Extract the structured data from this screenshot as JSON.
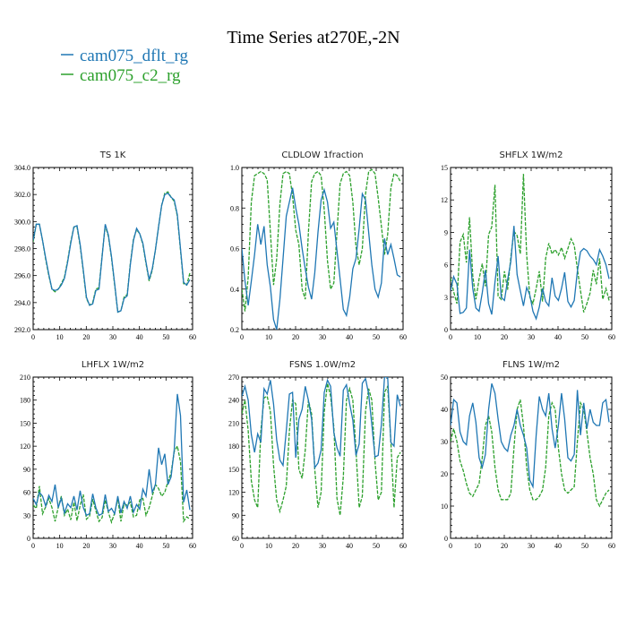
{
  "figure": {
    "title": "Time Series at270E,-2N",
    "legend": [
      {
        "label": "cam075_dflt_rg",
        "color": "#1f77b4",
        "dash": "solid"
      },
      {
        "label": "cam075_c2_rg",
        "color": "#2ca02c",
        "dash": "dashed"
      }
    ]
  },
  "chart_data": [
    {
      "type": "line",
      "title": "TS   1K",
      "xlim": [
        0,
        60
      ],
      "xticks": [
        0,
        10,
        20,
        30,
        40,
        50,
        60
      ],
      "ylim": [
        292,
        304
      ],
      "yticks": [
        292,
        294,
        296,
        298,
        300,
        302,
        304
      ],
      "ytick_format": 1,
      "series": [
        {
          "name": "cam075_dflt_rg",
          "color": "#1f77b4",
          "dash": "solid",
          "values": [
            298.6,
            299.8,
            299.8,
            298.6,
            297.3,
            296.1,
            295.0,
            294.9,
            295.0,
            295.3,
            295.8,
            297.0,
            298.4,
            299.6,
            299.7,
            298.3,
            296.4,
            294.4,
            293.8,
            293.9,
            294.9,
            295.0,
            297.4,
            299.8,
            299.0,
            297.4,
            295.4,
            293.3,
            293.4,
            294.3,
            294.5,
            296.8,
            298.6,
            299.5,
            299.1,
            298.4,
            297.0,
            295.7,
            296.5,
            297.9,
            299.6,
            301.2,
            302.0,
            302.1,
            301.8,
            301.6,
            300.5,
            298.0,
            295.5,
            295.3,
            295.7
          ]
        },
        {
          "name": "cam075_c2_rg",
          "color": "#2ca02c",
          "dash": "dashed",
          "values": [
            298.5,
            299.8,
            299.8,
            298.6,
            297.2,
            296.0,
            295.0,
            294.8,
            295.0,
            295.4,
            295.9,
            297.1,
            298.5,
            299.6,
            299.6,
            298.2,
            296.3,
            294.3,
            293.8,
            294.0,
            295.0,
            295.1,
            297.5,
            299.7,
            298.9,
            297.3,
            295.3,
            293.3,
            293.4,
            294.4,
            294.6,
            296.9,
            298.7,
            299.4,
            299.1,
            298.3,
            296.9,
            295.6,
            296.4,
            297.9,
            299.6,
            301.2,
            302.1,
            302.2,
            301.8,
            301.5,
            300.4,
            297.9,
            295.4,
            295.3,
            296.2
          ]
        }
      ]
    },
    {
      "type": "line",
      "title": "CLDLOW   1fraction",
      "xlim": [
        0,
        60
      ],
      "xticks": [
        0,
        10,
        20,
        30,
        40,
        50,
        60
      ],
      "ylim": [
        0.2,
        1.0
      ],
      "yticks": [
        0.2,
        0.4,
        0.6,
        0.8,
        1.0
      ],
      "ytick_format": 1,
      "series": [
        {
          "name": "cam075_dflt_rg",
          "color": "#1f77b4",
          "dash": "solid",
          "values": [
            0.6,
            0.44,
            0.32,
            0.44,
            0.57,
            0.72,
            0.62,
            0.71,
            0.52,
            0.41,
            0.25,
            0.2,
            0.35,
            0.55,
            0.76,
            0.83,
            0.9,
            0.8,
            0.72,
            0.6,
            0.5,
            0.41,
            0.35,
            0.48,
            0.68,
            0.84,
            0.89,
            0.83,
            0.7,
            0.73,
            0.59,
            0.45,
            0.3,
            0.27,
            0.36,
            0.5,
            0.55,
            0.7,
            0.87,
            0.84,
            0.68,
            0.52,
            0.4,
            0.36,
            0.43,
            0.65,
            0.57,
            0.62,
            0.55,
            0.47,
            0.46
          ]
        },
        {
          "name": "cam075_c2_rg",
          "color": "#2ca02c",
          "dash": "dashed",
          "values": [
            0.4,
            0.29,
            0.46,
            0.83,
            0.96,
            0.97,
            0.98,
            0.97,
            0.94,
            0.68,
            0.42,
            0.55,
            0.82,
            0.97,
            0.98,
            0.97,
            0.86,
            0.69,
            0.62,
            0.4,
            0.35,
            0.68,
            0.93,
            0.97,
            0.98,
            0.96,
            0.79,
            0.54,
            0.4,
            0.43,
            0.68,
            0.92,
            0.97,
            0.98,
            0.96,
            0.83,
            0.61,
            0.52,
            0.6,
            0.87,
            0.98,
            0.99,
            0.97,
            0.85,
            0.71,
            0.57,
            0.67,
            0.9,
            0.97,
            0.96,
            0.93
          ]
        }
      ]
    },
    {
      "type": "line",
      "title": "SHFLX   1W/m2",
      "xlim": [
        0,
        60
      ],
      "xticks": [
        0,
        10,
        20,
        30,
        40,
        50,
        60
      ],
      "ylim": [
        0,
        15
      ],
      "yticks": [
        0,
        3,
        6,
        9,
        12,
        15
      ],
      "ytick_format": 0,
      "series": [
        {
          "name": "cam075_dflt_rg",
          "color": "#1f77b4",
          "dash": "solid",
          "values": [
            3.6,
            4.9,
            4.2,
            1.5,
            1.6,
            2.0,
            7.4,
            3.8,
            2.0,
            1.7,
            3.4,
            5.5,
            2.4,
            1.4,
            4.4,
            6.8,
            3.0,
            2.7,
            4.6,
            6.3,
            9.6,
            5.1,
            3.6,
            2.2,
            3.9,
            3.2,
            1.7,
            1.0,
            2.1,
            3.8,
            2.6,
            2.2,
            4.8,
            3.1,
            2.7,
            3.8,
            5.3,
            2.6,
            2.1,
            2.7,
            5.4,
            7.2,
            7.5,
            7.3,
            6.8,
            6.5,
            6.0,
            7.4,
            6.8,
            6.0,
            4.7
          ]
        },
        {
          "name": "cam075_c2_rg",
          "color": "#2ca02c",
          "dash": "dashed",
          "values": [
            4.8,
            3.5,
            2.4,
            8.1,
            8.8,
            6.2,
            10.4,
            5.0,
            2.8,
            4.7,
            6.1,
            4.0,
            8.8,
            9.5,
            13.4,
            3.1,
            2.8,
            5.4,
            3.7,
            6.7,
            9.1,
            8.7,
            7.0,
            14.4,
            6.9,
            3.0,
            2.4,
            3.8,
            5.4,
            2.6,
            6.6,
            8.0,
            7.0,
            7.4,
            6.9,
            7.6,
            6.6,
            7.5,
            8.4,
            7.8,
            5.6,
            3.6,
            1.6,
            2.4,
            3.4,
            5.5,
            4.2,
            6.6,
            2.8,
            3.8,
            2.7
          ]
        }
      ]
    },
    {
      "type": "line",
      "title": "LHFLX   1W/m2",
      "xlim": [
        0,
        60
      ],
      "xticks": [
        0,
        10,
        20,
        30,
        40,
        50,
        60
      ],
      "ylim": [
        0,
        210
      ],
      "yticks": [
        0,
        30,
        60,
        90,
        120,
        150,
        180,
        210
      ],
      "ytick_format": 0,
      "series": [
        {
          "name": "cam075_dflt_rg",
          "color": "#1f77b4",
          "dash": "solid",
          "values": [
            52,
            44,
            60,
            55,
            42,
            56,
            48,
            70,
            40,
            52,
            33,
            45,
            40,
            55,
            37,
            62,
            40,
            30,
            32,
            58,
            40,
            30,
            32,
            57,
            35,
            39,
            32,
            55,
            33,
            48,
            39,
            55,
            34,
            44,
            38,
            64,
            55,
            90,
            60,
            70,
            118,
            96,
            110,
            70,
            80,
            115,
            188,
            160,
            47,
            63,
            37
          ]
        },
        {
          "name": "cam075_c2_rg",
          "color": "#2ca02c",
          "dash": "dashed",
          "values": [
            43,
            39,
            68,
            32,
            41,
            52,
            40,
            22,
            40,
            55,
            30,
            38,
            24,
            47,
            23,
            43,
            57,
            25,
            29,
            51,
            36,
            22,
            27,
            50,
            34,
            21,
            33,
            52,
            22,
            45,
            43,
            47,
            28,
            30,
            50,
            52,
            30,
            40,
            55,
            70,
            65,
            55,
            60,
            74,
            85,
            113,
            120,
            100,
            22,
            28,
            25
          ]
        }
      ]
    },
    {
      "type": "line",
      "title": "FSNS   1.0W/m2",
      "xlim": [
        0,
        60
      ],
      "xticks": [
        0,
        10,
        20,
        30,
        40,
        50,
        60
      ],
      "ylim": [
        60,
        270
      ],
      "yticks": [
        60,
        90,
        120,
        150,
        180,
        210,
        240,
        270
      ],
      "ytick_format": 0,
      "series": [
        {
          "name": "cam075_dflt_rg",
          "color": "#1f77b4",
          "dash": "solid",
          "values": [
            245,
            258,
            240,
            195,
            172,
            196,
            185,
            255,
            248,
            266,
            235,
            188,
            162,
            155,
            200,
            248,
            250,
            165,
            215,
            228,
            258,
            240,
            215,
            152,
            158,
            175,
            250,
            266,
            258,
            198,
            178,
            167,
            253,
            260,
            235,
            214,
            168,
            183,
            262,
            268,
            248,
            208,
            166,
            168,
            208,
            270,
            270,
            185,
            180,
            247,
            232
          ]
        },
        {
          "name": "cam075_c2_rg",
          "color": "#2ca02c",
          "dash": "dashed",
          "values": [
            222,
            240,
            200,
            135,
            110,
            100,
            200,
            243,
            245,
            225,
            155,
            110,
            95,
            110,
            128,
            200,
            240,
            235,
            150,
            138,
            175,
            240,
            222,
            150,
            100,
            120,
            225,
            262,
            245,
            205,
            112,
            90,
            140,
            240,
            255,
            240,
            175,
            100,
            115,
            226,
            255,
            240,
            160,
            110,
            120,
            250,
            258,
            185,
            100,
            165,
            172
          ]
        }
      ]
    },
    {
      "type": "line",
      "title": "FLNS   1W/m2",
      "xlim": [
        0,
        60
      ],
      "xticks": [
        0,
        10,
        20,
        30,
        40,
        50,
        60
      ],
      "ylim": [
        0,
        50
      ],
      "yticks": [
        0,
        10,
        20,
        30,
        40,
        50
      ],
      "ytick_format": 0,
      "series": [
        {
          "name": "cam075_dflt_rg",
          "color": "#1f77b4",
          "dash": "solid",
          "values": [
            35,
            43,
            42,
            33,
            30,
            29,
            38,
            42,
            36,
            25,
            22,
            26,
            40,
            48,
            45,
            37,
            30,
            28,
            27,
            32,
            35,
            40,
            35,
            32,
            28,
            18,
            16,
            32,
            44,
            40,
            38,
            45,
            34,
            28,
            35,
            45,
            37,
            25,
            24,
            26,
            46,
            32,
            42,
            34,
            40,
            36,
            35,
            35,
            42,
            43,
            36
          ]
        },
        {
          "name": "cam075_c2_rg",
          "color": "#2ca02c",
          "dash": "dashed",
          "values": [
            30,
            34,
            30,
            24,
            21,
            17,
            14,
            13,
            15,
            17,
            25,
            35,
            38,
            33,
            22,
            15,
            12,
            12,
            12,
            14,
            28,
            40,
            43,
            35,
            22,
            15,
            12,
            12,
            13,
            15,
            22,
            38,
            42,
            40,
            28,
            20,
            15,
            14,
            15,
            16,
            30,
            42,
            40,
            33,
            25,
            20,
            12,
            10,
            12,
            14,
            15
          ]
        }
      ]
    }
  ]
}
